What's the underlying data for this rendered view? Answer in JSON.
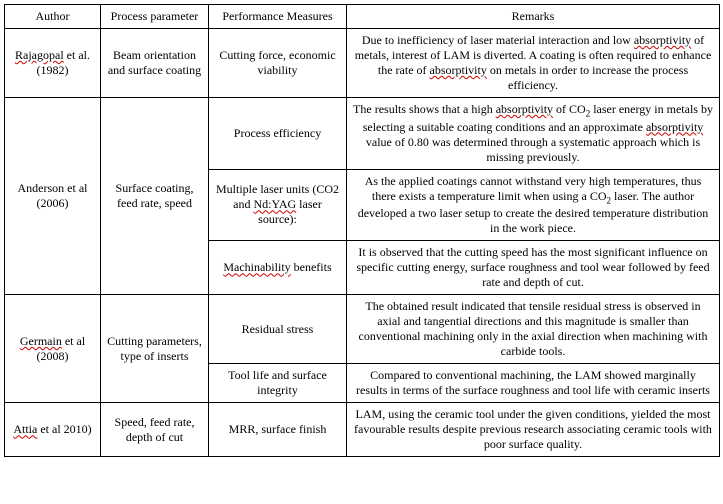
{
  "table": {
    "headers": {
      "author": "Author",
      "process": "Process parameter",
      "perf": "Performance Measures",
      "remarks": "Remarks"
    },
    "rows": [
      {
        "author_html": "<span class='tu'>Rajagopal</span> et al. (1982)",
        "process": "Beam orientation and surface coating",
        "cells": [
          {
            "perf": "Cutting force, economic viability",
            "remarks_html": "Due to inefficiency of laser material interaction and low <span class='tu'>absorptivity</span> of metals, interest of LAM is diverted. A coating is often required to enhance the rate of <span class='tu'>absorptivity</span> on metals in order to increase the process efficiency."
          }
        ]
      },
      {
        "author_html": "Anderson  et al (2006)",
        "process": "Surface coating, feed rate, speed",
        "cells": [
          {
            "perf": "Process efficiency",
            "remarks_html": "The results shows that a high <span class='tu'>absorptivity</span> of CO<span class='sub'>2</span> laser energy in metals by selecting a suitable coating conditions and an approximate <span class='tu'>absorptivity</span> value of 0.80 was determined through a systematic approach which is missing previously."
          },
          {
            "perf_html": "Multiple laser units (CO2 and <span class='tu'>Nd:YAG</span> laser source):",
            "remarks_html": "As the applied coatings cannot withstand very high temperatures, thus there exists a temperature limit when using a CO<span class='sub'>2</span> laser. The author developed a two laser setup to create the desired temperature distribution in the work piece."
          },
          {
            "perf_html": "<span class='tu'>Machinability</span> benefits",
            "remarks_html": "It is observed that the cutting speed has the most significant influence on specific cutting energy, surface roughness and tool wear followed by feed rate and depth of cut."
          }
        ]
      },
      {
        "author_html": "<span class='tu'>Germain</span> et al (2008)",
        "process": "Cutting parameters, type of inserts",
        "cells": [
          {
            "perf": "Residual stress",
            "remarks_html": "The obtained result indicated that tensile residual stress is observed in axial and tangential directions and this magnitude is smaller than conventional machining only in the axial direction when machining with carbide tools."
          },
          {
            "perf": "Tool life and surface integrity",
            "remarks_html": "Compared to conventional machining, the LAM showed marginally results in terms of the surface roughness and tool life with ceramic inserts"
          }
        ]
      },
      {
        "author_html": "<span class='tu'>Attia</span> et al 2010)",
        "process": "Speed, feed rate, depth of cut",
        "cells": [
          {
            "perf": "MRR, surface finish",
            "remarks_html": "LAM, using the ceramic tool under the given conditions, yielded the most favourable results despite previous research associating ceramic tools with poor surface quality."
          }
        ]
      }
    ]
  }
}
